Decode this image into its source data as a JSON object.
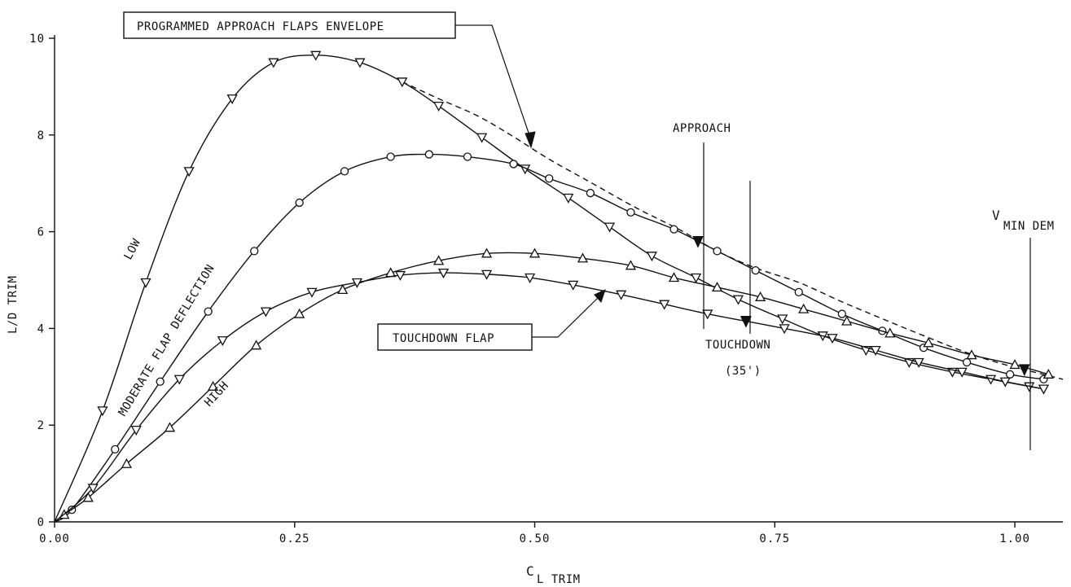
{
  "chart_data": {
    "type": "line",
    "xlabel_main": "C",
    "xlabel_sub": "L TRIM",
    "ylabel": "L/D TRIM",
    "xlim": [
      0.0,
      1.05
    ],
    "ylim": [
      0,
      10
    ],
    "x_ticks": [
      {
        "value": 0.0,
        "label": "0.00"
      },
      {
        "value": 0.25,
        "label": "0.25"
      },
      {
        "value": 0.5,
        "label": "0.50"
      },
      {
        "value": 0.75,
        "label": "0.75"
      },
      {
        "value": 1.0,
        "label": "1.00"
      }
    ],
    "y_ticks": [
      {
        "value": 0,
        "label": "0"
      },
      {
        "value": 2,
        "label": "2"
      },
      {
        "value": 4,
        "label": "4"
      },
      {
        "value": 6,
        "label": "6"
      },
      {
        "value": 8,
        "label": "8"
      },
      {
        "value": 10,
        "label": "10"
      }
    ],
    "grid": false,
    "series": [
      {
        "name": "LOW",
        "marker": "triangle-down",
        "x": [
          0.0,
          0.05,
          0.095,
          0.14,
          0.185,
          0.228,
          0.272,
          0.318,
          0.362,
          0.4,
          0.445,
          0.49,
          0.535,
          0.578,
          0.622,
          0.668,
          0.712,
          0.758,
          0.8,
          0.845,
          0.89,
          0.935,
          0.975,
          1.015,
          1.03
        ],
        "y": [
          0.0,
          2.3,
          4.95,
          7.25,
          8.75,
          9.5,
          9.65,
          9.5,
          9.1,
          8.6,
          7.95,
          7.3,
          6.7,
          6.1,
          5.5,
          5.05,
          4.6,
          4.2,
          3.85,
          3.55,
          3.3,
          3.1,
          2.95,
          2.8,
          2.75
        ]
      },
      {
        "name": "MODERATE FLAP DEFLECTION",
        "marker": "circle",
        "x": [
          0.0,
          0.018,
          0.063,
          0.11,
          0.16,
          0.208,
          0.255,
          0.302,
          0.35,
          0.39,
          0.43,
          0.478,
          0.515,
          0.558,
          0.6,
          0.645,
          0.69,
          0.73,
          0.775,
          0.82,
          0.862,
          0.905,
          0.95,
          0.995,
          1.03
        ],
        "y": [
          0.0,
          0.25,
          1.5,
          2.9,
          4.35,
          5.6,
          6.6,
          7.25,
          7.55,
          7.6,
          7.55,
          7.4,
          7.1,
          6.8,
          6.4,
          6.05,
          5.6,
          5.2,
          4.75,
          4.3,
          3.95,
          3.6,
          3.3,
          3.05,
          2.95
        ]
      },
      {
        "name": "HIGH",
        "marker": "triangle-up",
        "x": [
          0.0,
          0.01,
          0.035,
          0.075,
          0.12,
          0.165,
          0.21,
          0.255,
          0.3,
          0.35,
          0.4,
          0.45,
          0.5,
          0.55,
          0.6,
          0.645,
          0.69,
          0.735,
          0.78,
          0.825,
          0.87,
          0.91,
          0.955,
          1.0,
          1.035
        ],
        "y": [
          0.0,
          0.15,
          0.5,
          1.2,
          1.95,
          2.8,
          3.65,
          4.3,
          4.8,
          5.15,
          5.4,
          5.55,
          5.55,
          5.45,
          5.3,
          5.05,
          4.85,
          4.65,
          4.4,
          4.15,
          3.9,
          3.7,
          3.45,
          3.25,
          3.05
        ]
      },
      {
        "name": "TOUCHDOWN FLAP",
        "marker": "triangle-down",
        "x": [
          0.0,
          0.04,
          0.085,
          0.13,
          0.175,
          0.22,
          0.268,
          0.315,
          0.36,
          0.405,
          0.45,
          0.495,
          0.54,
          0.59,
          0.635,
          0.68,
          0.72,
          0.76,
          0.81,
          0.855,
          0.9,
          0.945,
          0.99,
          1.03
        ],
        "y": [
          0.0,
          0.7,
          1.9,
          2.95,
          3.75,
          4.35,
          4.75,
          4.95,
          5.1,
          5.15,
          5.12,
          5.05,
          4.9,
          4.7,
          4.5,
          4.3,
          4.15,
          4.0,
          3.8,
          3.55,
          3.3,
          3.1,
          2.9,
          2.75
        ]
      }
    ],
    "envelope": {
      "name": "PROGRAMMED APPROACH FLAPS ENVELOPE",
      "style": "dashed",
      "x": [
        0.362,
        0.4,
        0.44,
        0.475,
        0.515,
        0.56,
        0.605,
        0.65,
        0.69,
        0.73,
        0.775,
        0.82,
        0.862,
        0.905,
        0.95,
        0.99,
        1.05
      ],
      "y": [
        9.1,
        8.75,
        8.4,
        8.0,
        7.5,
        7.0,
        6.5,
        6.05,
        5.6,
        5.25,
        4.95,
        4.55,
        4.2,
        3.85,
        3.5,
        3.25,
        2.95
      ]
    },
    "markers_at": [
      {
        "label": "APPROACH",
        "x": 0.67,
        "y": 5.8
      },
      {
        "label": "TOUCHDOWN",
        "sublabel": "(35')",
        "x": 0.72,
        "y": 4.15
      },
      {
        "label": "V",
        "sublabel": "MIN DEM",
        "x": 1.01,
        "y": 3.15
      }
    ],
    "annotations": {
      "envelope_box": "PROGRAMMED APPROACH FLAPS ENVELOPE",
      "approach": "APPROACH",
      "touchdown": "TOUCHDOWN",
      "touchdown_alt": "(35')",
      "vmin_main": "V",
      "vmin_sub": "MIN DEM",
      "touchdown_flap_box": "TOUCHDOWN FLAP",
      "low": "LOW",
      "moderate": "MODERATE FLAP DEFLECTION",
      "high": "HIGH"
    }
  }
}
